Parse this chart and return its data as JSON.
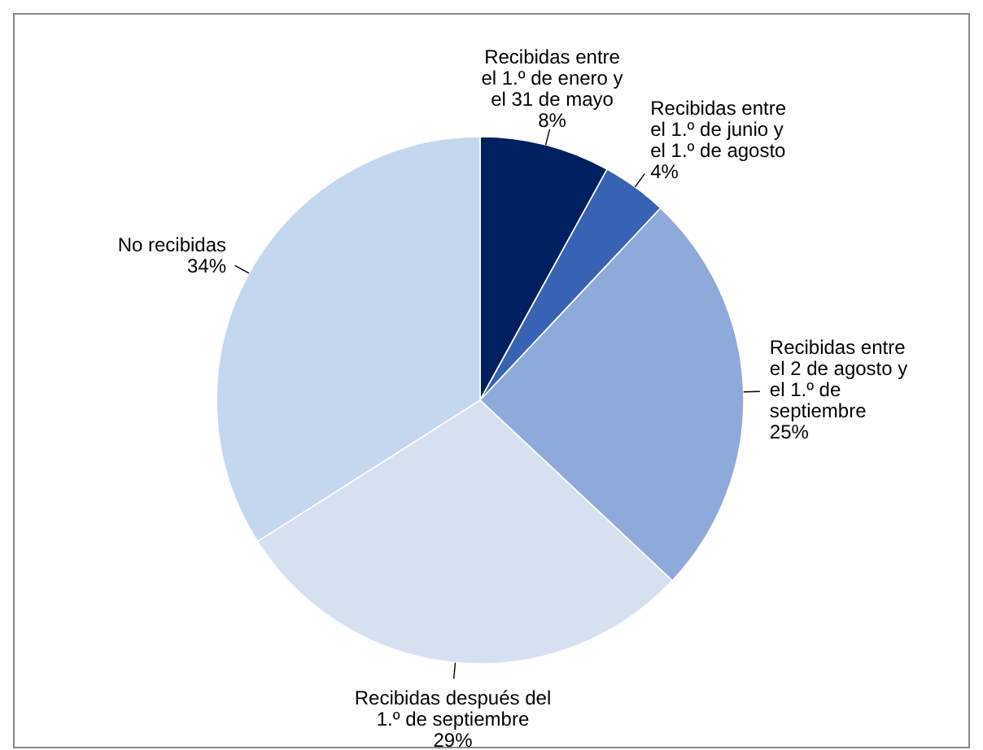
{
  "chart_data": {
    "type": "pie",
    "categories": [
      "Recibidas entre el 1.º de enero y el 31 de mayo",
      "Recibidas entre el 1.º de junio y el 1.º de agosto",
      "Recibidas entre el 2 de agosto y el 1.º de septiembre",
      "Recibidas después del 1.º de septiembre",
      "No recibidas"
    ],
    "values": [
      8,
      4,
      25,
      29,
      34
    ],
    "colors": [
      "#002060",
      "#3862b4",
      "#8eaadb",
      "#d6e0f1",
      "#c5d7ee"
    ],
    "value_labels": [
      "8%",
      "4%",
      "25%",
      "29%",
      "34%"
    ]
  }
}
